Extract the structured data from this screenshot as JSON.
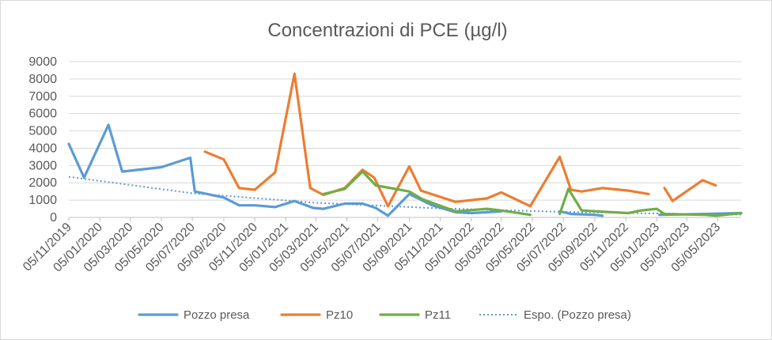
{
  "chart_data": {
    "type": "line",
    "title": "Concentrazioni di PCE (µg/l)",
    "xlabel": "",
    "ylabel": "",
    "ylim": [
      0,
      9000
    ],
    "yticks": [
      0,
      1000,
      2000,
      3000,
      4000,
      5000,
      6000,
      7000,
      8000,
      9000
    ],
    "xlim": [
      "2019-11-05",
      "2023-06-20"
    ],
    "xticks": [
      "05/11/2019",
      "05/01/2020",
      "05/03/2020",
      "05/05/2020",
      "05/07/2020",
      "05/09/2020",
      "05/11/2020",
      "05/01/2021",
      "05/03/2021",
      "05/05/2021",
      "05/07/2021",
      "05/09/2021",
      "05/11/2021",
      "05/01/2022",
      "05/03/2022",
      "05/05/2022",
      "05/07/2022",
      "05/09/2022",
      "05/11/2022",
      "05/01/2023",
      "05/03/2023",
      "05/05/2023"
    ],
    "grid": true,
    "legend_position": "bottom",
    "series": [
      {
        "name": "Pozzo presa",
        "color": "#5b9bd5",
        "style": "solid",
        "points": [
          [
            "2019-11-05",
            4250
          ],
          [
            "2019-12-05",
            2300
          ],
          [
            "2020-01-22",
            5350
          ],
          [
            "2020-02-18",
            2650
          ],
          [
            "2020-05-05",
            2900
          ],
          [
            "2020-07-01",
            3450
          ],
          [
            "2020-07-10",
            1500
          ],
          [
            "2020-09-05",
            1150
          ],
          [
            "2020-10-05",
            700
          ],
          [
            "2020-11-05",
            700
          ],
          [
            "2020-12-15",
            600
          ],
          [
            "2021-01-22",
            950
          ],
          [
            "2021-02-28",
            550
          ],
          [
            "2021-03-20",
            500
          ],
          [
            "2021-05-01",
            800
          ],
          [
            "2021-06-05",
            800
          ],
          [
            "2021-07-01",
            550
          ],
          [
            "2021-07-25",
            100
          ],
          [
            "2021-09-05",
            1350
          ],
          [
            "2021-10-20",
            700
          ],
          [
            "2021-12-05",
            300
          ],
          [
            "2022-01-05",
            250
          ],
          [
            "2022-02-05",
            300
          ],
          [
            "2022-03-05",
            350
          ]
        ]
      },
      {
        "name": "Pozzo presa",
        "color": "#5b9bd5",
        "style": "solid",
        "points": [
          [
            "2022-06-28",
            350
          ],
          [
            "2022-07-20",
            200
          ],
          [
            "2022-09-05",
            150
          ],
          [
            "2022-09-20",
            100
          ]
        ]
      },
      {
        "name": "Pozzo presa",
        "color": "#5b9bd5",
        "style": "solid",
        "points": [
          [
            "2023-01-10",
            150
          ],
          [
            "2023-04-10",
            200
          ],
          [
            "2023-06-20",
            250
          ]
        ]
      },
      {
        "name": "Pz10",
        "color": "#ed7d31",
        "style": "solid",
        "points": [
          [
            "2020-07-30",
            3800
          ],
          [
            "2020-09-05",
            3350
          ],
          [
            "2020-10-05",
            1700
          ],
          [
            "2020-11-05",
            1600
          ],
          [
            "2020-12-15",
            2600
          ],
          [
            "2021-01-22",
            8300
          ],
          [
            "2021-02-22",
            1700
          ],
          [
            "2021-03-20",
            1300
          ],
          [
            "2021-05-01",
            1700
          ],
          [
            "2021-06-05",
            2750
          ],
          [
            "2021-06-28",
            2300
          ],
          [
            "2021-07-25",
            650
          ],
          [
            "2021-09-05",
            2950
          ],
          [
            "2021-09-28",
            1550
          ],
          [
            "2021-12-05",
            900
          ],
          [
            "2022-02-05",
            1100
          ],
          [
            "2022-03-05",
            1450
          ],
          [
            "2022-05-01",
            650
          ],
          [
            "2022-06-28",
            3500
          ],
          [
            "2022-07-20",
            1600
          ],
          [
            "2022-08-10",
            1500
          ],
          [
            "2022-09-20",
            1700
          ],
          [
            "2022-11-10",
            1550
          ],
          [
            "2022-12-20",
            1350
          ]
        ]
      },
      {
        "name": "Pz10",
        "color": "#ed7d31",
        "style": "solid",
        "points": [
          [
            "2023-01-20",
            1700
          ],
          [
            "2023-02-05",
            950
          ],
          [
            "2023-04-05",
            2150
          ],
          [
            "2023-05-01",
            1850
          ]
        ]
      },
      {
        "name": "Pz11",
        "color": "#70ad47",
        "style": "solid",
        "points": [
          [
            "2021-03-20",
            1350
          ],
          [
            "2021-05-01",
            1650
          ],
          [
            "2021-06-05",
            2650
          ],
          [
            "2021-07-01",
            1850
          ],
          [
            "2021-09-05",
            1500
          ],
          [
            "2021-10-01",
            1050
          ],
          [
            "2021-12-05",
            350
          ],
          [
            "2022-02-05",
            500
          ],
          [
            "2022-03-05",
            400
          ],
          [
            "2022-05-01",
            150
          ]
        ]
      },
      {
        "name": "Pz11",
        "color": "#70ad47",
        "style": "solid",
        "points": [
          [
            "2022-06-28",
            200
          ],
          [
            "2022-07-15",
            1650
          ],
          [
            "2022-08-10",
            400
          ],
          [
            "2022-09-10",
            350
          ],
          [
            "2022-11-10",
            250
          ],
          [
            "2022-12-05",
            400
          ],
          [
            "2023-01-05",
            500
          ],
          [
            "2023-01-20",
            200
          ],
          [
            "2023-04-10",
            150
          ],
          [
            "2023-05-01",
            100
          ],
          [
            "2023-06-20",
            250
          ]
        ]
      },
      {
        "name": "Espo. (Pozzo presa)",
        "color": "#5b9bd5",
        "style": "dotted",
        "points": [
          [
            "2019-11-05",
            2350
          ],
          [
            "2020-07-05",
            1400
          ],
          [
            "2021-03-05",
            850
          ],
          [
            "2021-11-05",
            520
          ],
          [
            "2022-07-05",
            320
          ],
          [
            "2023-03-05",
            200
          ],
          [
            "2023-06-20",
            160
          ]
        ]
      }
    ],
    "legend": [
      {
        "label": "Pozzo presa",
        "color": "#5b9bd5",
        "style": "solid"
      },
      {
        "label": "Pz10",
        "color": "#ed7d31",
        "style": "solid"
      },
      {
        "label": "Pz11",
        "color": "#70ad47",
        "style": "solid"
      },
      {
        "label": "Espo. (Pozzo presa)",
        "color": "#5b9bd5",
        "style": "dotted"
      }
    ]
  }
}
